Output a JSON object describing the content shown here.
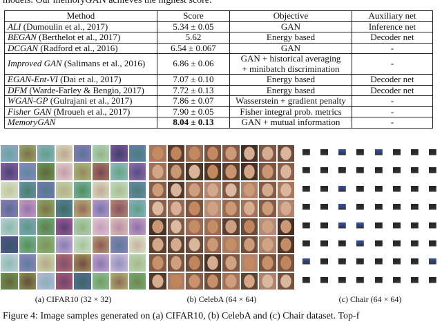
{
  "intro": "models. Our memoryGAN achieves the highest score.",
  "table": {
    "header": [
      "Method",
      "Score",
      "Objective",
      "Auxiliary net"
    ],
    "rows": [
      {
        "method": "ALI",
        "cite": " (Dumoulin et al., 2017)",
        "score": "5.34 ± 0.05",
        "objective": [
          "GAN"
        ],
        "aux": "Inference net"
      },
      {
        "method": "BEGAN",
        "cite": " (Berthelot et al., 2017)",
        "score": "5.62",
        "objective": [
          "Energy based"
        ],
        "aux": "Decoder net"
      },
      {
        "method": "DCGAN",
        "cite": " (Radford et al., 2016)",
        "score": "6.54 ± 0.067",
        "objective": [
          "GAN"
        ],
        "aux": "-"
      },
      {
        "method": "Improved GAN",
        "cite": " (Salimans et al., 2016)",
        "score": "6.86 ± 0.06",
        "objective": [
          "GAN + historical averaging",
          "+ minibatch discrimination"
        ],
        "aux": "-"
      },
      {
        "method": "EGAN-Ent-VI",
        "cite": " (Dai et al., 2017)",
        "score": "7.07 ± 0.10",
        "objective": [
          "Energy based"
        ],
        "aux": "Decoder net"
      },
      {
        "method": "DFM",
        "cite": " (Warde-Farley & Bengio, 2017)",
        "score": "7.72 ± 0.13",
        "objective": [
          "Energy based"
        ],
        "aux": "Decoder net"
      },
      {
        "method": "WGAN-GP",
        "cite": " (Gulrajani et al., 2017)",
        "score": "7.86 ± 0.07",
        "objective": [
          "Wasserstein + gradient penalty"
        ],
        "aux": "-"
      },
      {
        "method": "Fisher GAN",
        "cite": " (Mroueh et al., 2017)",
        "score": "7.90 ± 0.05",
        "objective": [
          "Fisher integral prob. metrics"
        ],
        "aux": "-"
      },
      {
        "method": "MemoryGAN",
        "cite": "",
        "score": "8.04 ± 0.13",
        "objective": [
          "GAN + mutual information"
        ],
        "aux": "-"
      }
    ]
  },
  "figure": {
    "captions": [
      "(a) CIFAR10 (32 × 32)",
      "(b) CelebA (64 × 64)",
      "(c) Chair (64 × 64)"
    ],
    "caption": "Figure 4:  Image samples generated on (a) CIFAR10, (b) CelebA and (c) Chair dataset. Top-f"
  }
}
